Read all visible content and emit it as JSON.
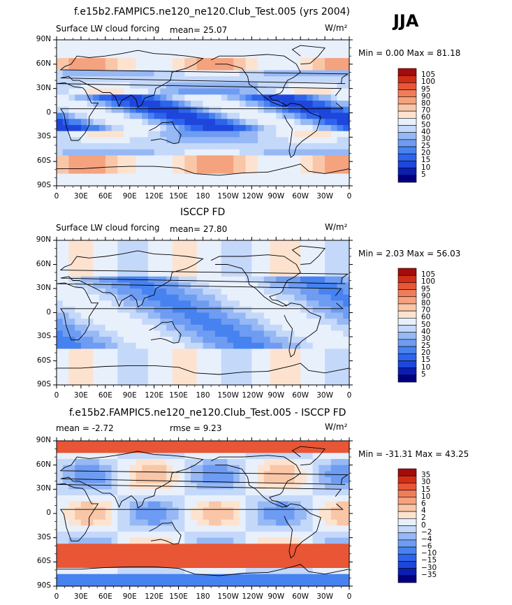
{
  "header": {
    "season": "JJA"
  },
  "panels": [
    {
      "id": "model",
      "title": "f.e15b2.FAMPIC5.ne120_ne120.Club_Test.005 (yrs 2004)",
      "left_label": "Surface LW cloud forcing",
      "center_label": "mean=   25.07",
      "units": "W/m²",
      "minmax": "Min =    0.00 Max =  81.18",
      "colorbar_labels": [
        "105",
        "100",
        "95",
        "90",
        "80",
        "70",
        "60",
        "50",
        "40",
        "30",
        "25",
        "20",
        "15",
        "10",
        "5"
      ]
    },
    {
      "id": "obs",
      "title": "ISCCP FD",
      "left_label": "Surface LW cloud forcing",
      "center_label": "mean=   27.80",
      "units": "W/m²",
      "minmax": "Min =    2.03 Max =  56.03",
      "colorbar_labels": [
        "105",
        "100",
        "95",
        "90",
        "80",
        "70",
        "60",
        "50",
        "40",
        "30",
        "25",
        "20",
        "15",
        "10",
        "5"
      ]
    },
    {
      "id": "diff",
      "title": "f.e15b2.FAMPIC5.ne120_ne120.Club_Test.005 - ISCCP FD",
      "left_label": "mean =   -2.72",
      "center_label": "rmse =    9.23",
      "units": "W/m²",
      "minmax": "Min = -31.31 Max =  43.25",
      "colorbar_labels": [
        "35",
        "30",
        "15",
        "10",
        "6",
        "4",
        "2",
        "0",
        "−2",
        "−4",
        "−6",
        "−10",
        "−15",
        "−30",
        "−35"
      ]
    }
  ],
  "colors": {
    "abs_scale": [
      "#00007f",
      "#0a1eb4",
      "#1e46dc",
      "#2d64eb",
      "#4682f0",
      "#6e9cf2",
      "#96b8f5",
      "#c4d8fa",
      "#e8f0fc",
      "#fde3cf",
      "#f9c6a8",
      "#f5a27e",
      "#f07d57",
      "#e85636",
      "#d22e16",
      "#a40c0c"
    ],
    "diff_scale": [
      "#00007f",
      "#0a1eb4",
      "#1e46dc",
      "#2d64eb",
      "#4682f0",
      "#6e9cf2",
      "#96b8f5",
      "#c4d8fa",
      "#e8f0fc",
      "#fde3cf",
      "#f9c6a8",
      "#f5a27e",
      "#f07d57",
      "#e85636",
      "#d22e16",
      "#a40c0c"
    ]
  },
  "chart_data": [
    {
      "type": "heatmap",
      "title": "f.e15b2.FAMPIC5.ne120_ne120.Club_Test.005 (yrs 2004)",
      "variable": "Surface LW cloud forcing",
      "units": "W/m2",
      "mean": 25.07,
      "min": 0.0,
      "max": 81.18,
      "lat_ticks": [
        "90N",
        "60N",
        "30N",
        "0",
        "30S",
        "60S",
        "90S"
      ],
      "lon_ticks": [
        "0",
        "30E",
        "60E",
        "90E",
        "120E",
        "150E",
        "180",
        "150W",
        "120W",
        "90W",
        "60W",
        "30W",
        "0"
      ],
      "levels": [
        5,
        10,
        15,
        20,
        25,
        30,
        40,
        50,
        60,
        70,
        80,
        90,
        95,
        100,
        105
      ]
    },
    {
      "type": "heatmap",
      "title": "ISCCP FD",
      "variable": "Surface LW cloud forcing",
      "units": "W/m2",
      "mean": 27.8,
      "min": 2.03,
      "max": 56.03,
      "lat_ticks": [
        "90N",
        "60N",
        "30N",
        "0",
        "30S",
        "60S",
        "90S"
      ],
      "lon_ticks": [
        "0",
        "30E",
        "60E",
        "90E",
        "120E",
        "150E",
        "180",
        "150W",
        "120W",
        "90W",
        "60W",
        "30W",
        "0"
      ],
      "levels": [
        5,
        10,
        15,
        20,
        25,
        30,
        40,
        50,
        60,
        70,
        80,
        90,
        95,
        100,
        105
      ]
    },
    {
      "type": "heatmap",
      "title": "f.e15b2.FAMPIC5.ne120_ne120.Club_Test.005 - ISCCP FD",
      "units": "W/m2",
      "mean": -2.72,
      "rmse": 9.23,
      "min": -31.31,
      "max": 43.25,
      "lat_ticks": [
        "90N",
        "60N",
        "30N",
        "0",
        "30S",
        "60S",
        "90S"
      ],
      "lon_ticks": [
        "0",
        "30E",
        "60E",
        "90E",
        "120E",
        "150E",
        "180",
        "150W",
        "120W",
        "90W",
        "60W",
        "30W",
        "0"
      ],
      "levels": [
        -35,
        -30,
        -15,
        -10,
        -6,
        -4,
        -2,
        0,
        2,
        4,
        6,
        10,
        15,
        30,
        35
      ]
    }
  ]
}
